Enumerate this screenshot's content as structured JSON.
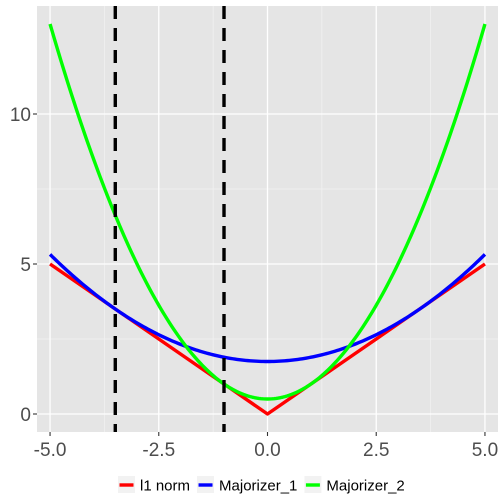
{
  "chart_data": {
    "type": "line",
    "title": "",
    "xlabel": "",
    "ylabel": "",
    "xlim": [
      -5.3,
      5.3
    ],
    "ylim": [
      -0.6,
      13.6
    ],
    "x_ticks": [
      -5.0,
      -2.5,
      0.0,
      2.5,
      5.0
    ],
    "x_tick_labels": [
      "-5.0",
      "-2.5",
      "0.0",
      "2.5",
      "5.0"
    ],
    "y_ticks": [
      0,
      5,
      10
    ],
    "y_tick_labels": [
      "0",
      "5",
      "10"
    ],
    "grid": true,
    "legend_position": "bottom",
    "background": "#e5e5e5",
    "vlines": {
      "x": [
        -3.5,
        -1.0
      ],
      "color": "#000000",
      "style": "dashed"
    },
    "series": [
      {
        "name": "l1 norm",
        "color": "#ff0000",
        "x": [
          -5,
          -4,
          -3,
          -2,
          -1,
          0,
          1,
          2,
          3,
          4,
          5
        ],
        "y": [
          5,
          4,
          3,
          2,
          1,
          0,
          1,
          2,
          3,
          4,
          5
        ]
      },
      {
        "name": "Majorizer_1",
        "color": "#0000ff",
        "x": [
          -5,
          -4,
          -3.5,
          -3,
          -2,
          -1,
          0,
          1,
          2,
          3,
          4,
          5
        ],
        "y": [
          5.32,
          4.04,
          3.5,
          3.04,
          2.32,
          1.89,
          1.75,
          1.89,
          2.32,
          3.04,
          4.04,
          5.32
        ]
      },
      {
        "name": "Majorizer_2",
        "color": "#00ff00",
        "x": [
          -5,
          -4,
          -3.5,
          -3,
          -2,
          -1,
          0,
          1,
          2,
          3,
          4,
          5
        ],
        "y": [
          13.0,
          8.5,
          6.63,
          5.0,
          2.5,
          1.0,
          0.5,
          1.0,
          2.5,
          5.0,
          8.5,
          13.0
        ]
      }
    ]
  }
}
